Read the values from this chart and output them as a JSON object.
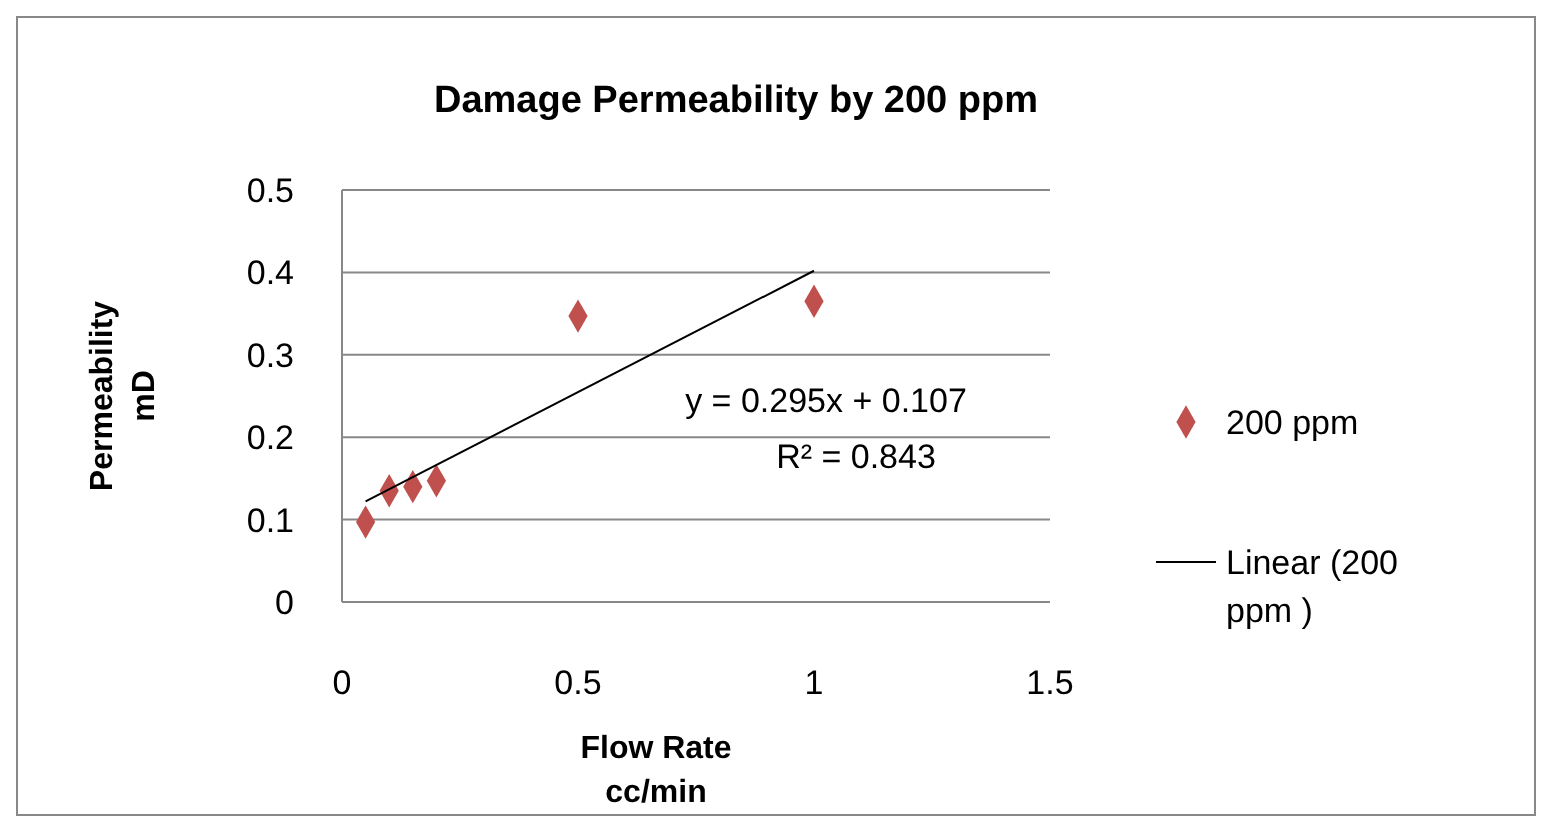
{
  "chart_data": {
    "type": "scatter",
    "title": "Damage Permeability by 200 ppm",
    "xlabel": "Flow Rate\ncc/min",
    "ylabel": "Permeability\nmD",
    "x": [
      0.05,
      0.1,
      0.15,
      0.2,
      0.5,
      1
    ],
    "series": [
      {
        "name": "200 ppm",
        "color": "#c0504d",
        "values": [
          0.097,
          0.135,
          0.14,
          0.147,
          0.347,
          0.365
        ],
        "marker": "diamond"
      },
      {
        "name": "Linear (200 ppm )",
        "type": "line",
        "color": "#000000",
        "x": [
          0.05,
          1
        ],
        "values": [
          0.122,
          0.402
        ],
        "marker": "none"
      }
    ],
    "xlim": [
      0,
      1.5
    ],
    "xticks": [
      0,
      0.5,
      1,
      1.5
    ],
    "ylim": [
      0,
      0.5
    ],
    "yticks": [
      0,
      0.1,
      0.2,
      0.3,
      0.4,
      0.5
    ],
    "grid": "y",
    "legend": "right",
    "annotations": [
      "y = 0.295x + 0.107",
      "R² = 0.843"
    ]
  }
}
